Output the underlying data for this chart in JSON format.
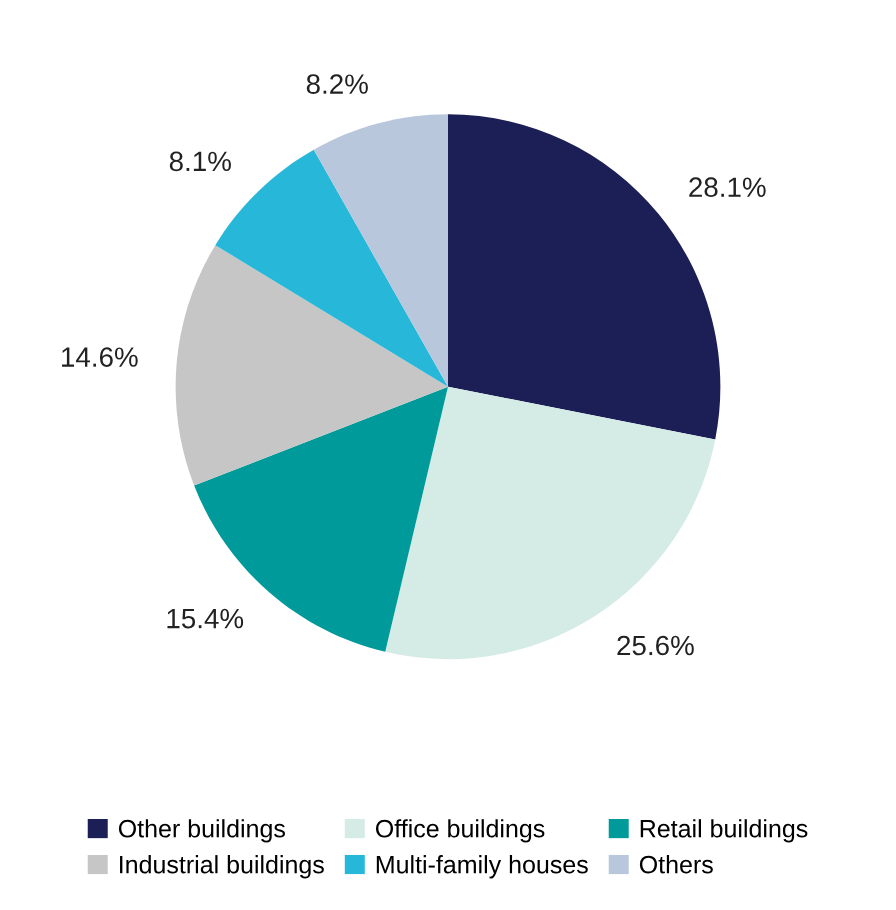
{
  "chart_data": {
    "type": "pie",
    "categories": [
      "Other buildings",
      "Office buildings",
      "Retail buildings",
      "Industrial buildings",
      "Multi-family houses",
      "Others"
    ],
    "values": [
      28.1,
      25.6,
      15.4,
      14.6,
      8.1,
      8.2
    ],
    "colors": [
      "#1b1f55",
      "#d5ebe6",
      "#009a9a",
      "#c6c6c6",
      "#27b8d9",
      "#b8c7db"
    ],
    "value_labels": [
      "28.1%",
      "25.6%",
      "15.4%",
      "14.6%",
      "8.1%",
      "8.2%"
    ],
    "legend": "bottom"
  }
}
